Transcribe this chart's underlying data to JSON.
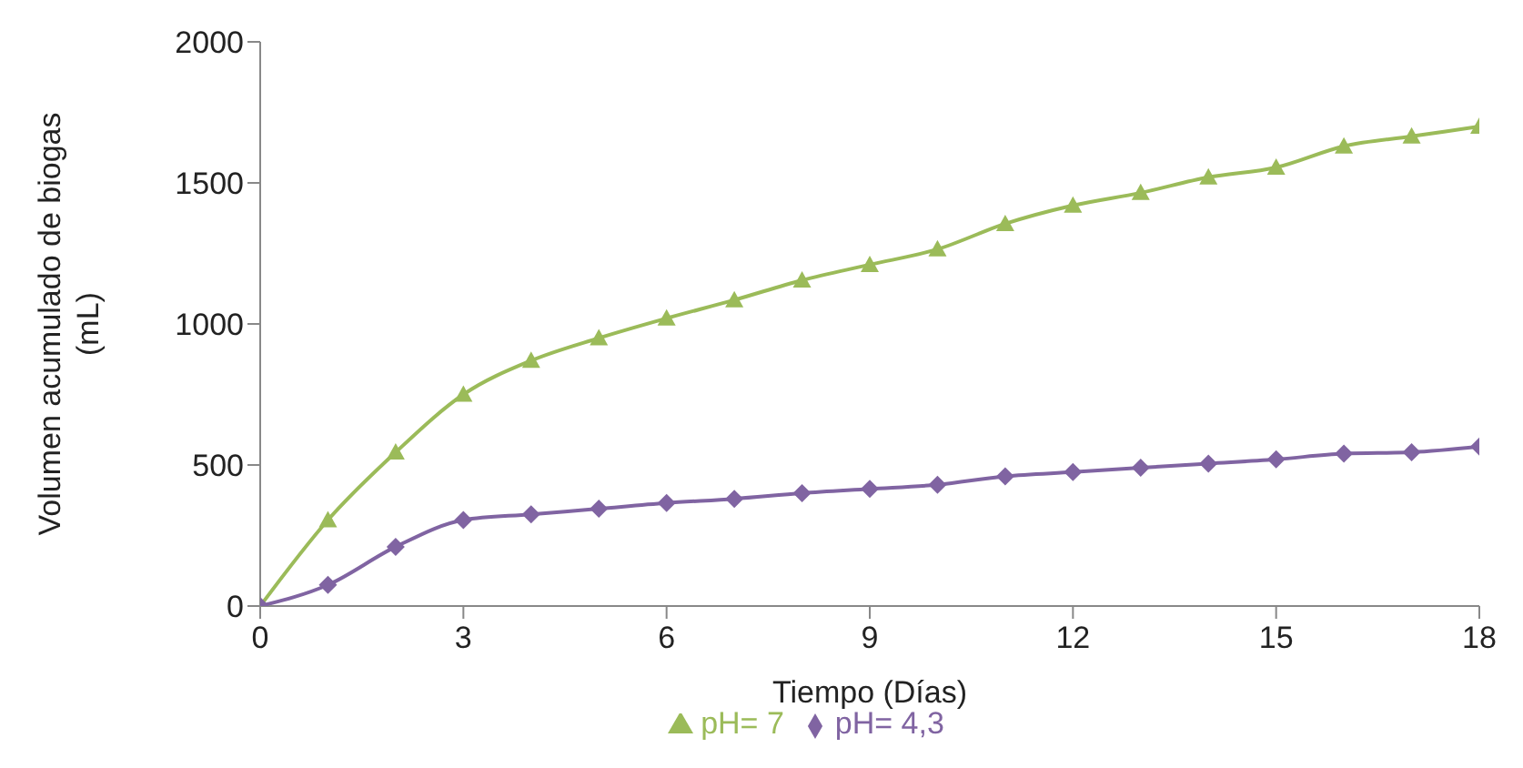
{
  "chart_data": {
    "type": "line",
    "xlabel": "Tiempo (Días)",
    "ylabel": "Volumen acumulado de biogas (mL)",
    "x": [
      0,
      1,
      2,
      3,
      4,
      5,
      6,
      7,
      8,
      9,
      10,
      11,
      12,
      13,
      14,
      15,
      16,
      17,
      18
    ],
    "xlim": [
      0,
      18
    ],
    "xticks": [
      0,
      3,
      6,
      9,
      12,
      15,
      18
    ],
    "ylim": [
      0,
      2000
    ],
    "yticks": [
      0,
      500,
      1000,
      1500,
      2000
    ],
    "grid": false,
    "legend": "bottom",
    "series": [
      {
        "name": "pH= 7",
        "color": "#9bbb59",
        "marker": "triangle",
        "values": [
          0,
          305,
          545,
          750,
          870,
          950,
          1020,
          1085,
          1155,
          1210,
          1265,
          1355,
          1420,
          1465,
          1520,
          1555,
          1630,
          1665,
          1700
        ]
      },
      {
        "name": "pH= 4,3",
        "color": "#8064a2",
        "marker": "diamond",
        "values": [
          0,
          75,
          210,
          305,
          325,
          345,
          365,
          380,
          400,
          415,
          430,
          460,
          475,
          490,
          505,
          520,
          540,
          545,
          565
        ]
      }
    ]
  }
}
